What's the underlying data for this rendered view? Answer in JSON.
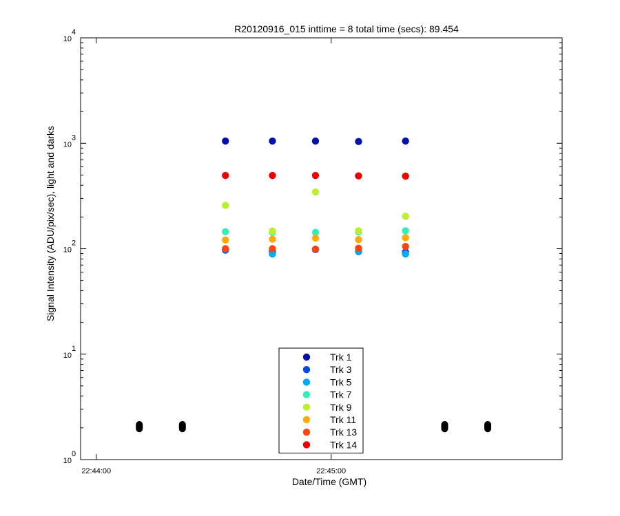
{
  "chart_data": {
    "type": "scatter",
    "title": "R20120916_015 inttime = 8 total time (secs): 89.454",
    "xlabel": "Date/Time (GMT)",
    "ylabel": "Signal Intensity (ADU/pix/sec), light and darks",
    "yscale": "log",
    "ylim": [
      1,
      10000
    ],
    "y_ticks": [
      {
        "value": 1,
        "base": "10",
        "exp": "0"
      },
      {
        "value": 10,
        "base": "10",
        "exp": "1"
      },
      {
        "value": 100,
        "base": "10",
        "exp": "2"
      },
      {
        "value": 1000,
        "base": "10",
        "exp": "3"
      },
      {
        "value": 10000,
        "base": "10",
        "exp": "4"
      }
    ],
    "xlim": [
      "22:43:56",
      "22:45:59"
    ],
    "x_ticks": [
      {
        "value": "22:44:00",
        "label": "22:44:00"
      },
      {
        "value": "22:45:00",
        "label": "22:45:00"
      }
    ],
    "x": [
      "22:44:33",
      "22:44:45",
      "22:44:56",
      "22:45:07",
      "22:45:19"
    ],
    "series": [
      {
        "name": "Trk 1",
        "color": "#0011aa",
        "values": [
          1050,
          1050,
          1050,
          1040,
          1050
        ]
      },
      {
        "name": "Trk 3",
        "color": "#0044ee",
        "values": [
          97,
          94,
          98,
          94,
          93
        ]
      },
      {
        "name": "Trk 5",
        "color": "#00aaee",
        "values": [
          99,
          89,
          99,
          95,
          89
        ]
      },
      {
        "name": "Trk 7",
        "color": "#33eebb",
        "values": [
          145,
          143,
          143,
          144,
          148
        ]
      },
      {
        "name": "Trk 9",
        "color": "#bbf030",
        "values": [
          258,
          147,
          345,
          148,
          203
        ]
      },
      {
        "name": "Trk 11",
        "color": "#ffaa00",
        "values": [
          121,
          123,
          126,
          122,
          127
        ]
      },
      {
        "name": "Trk 13",
        "color": "#ff4411",
        "values": [
          100,
          100,
          99,
          101,
          105
        ]
      },
      {
        "name": "Trk 14",
        "color": "#ee0000",
        "values": [
          495,
          495,
          495,
          490,
          488
        ]
      }
    ],
    "darks": {
      "color": "#000000",
      "x": [
        "22:44:11",
        "22:44:22",
        "22:45:29",
        "22:45:40"
      ],
      "values": [
        2.05,
        2.07,
        2.07,
        2.08
      ],
      "spread": [
        1.96,
        2.15
      ]
    },
    "legend": {
      "position": "bottom-center"
    },
    "grid": false
  }
}
